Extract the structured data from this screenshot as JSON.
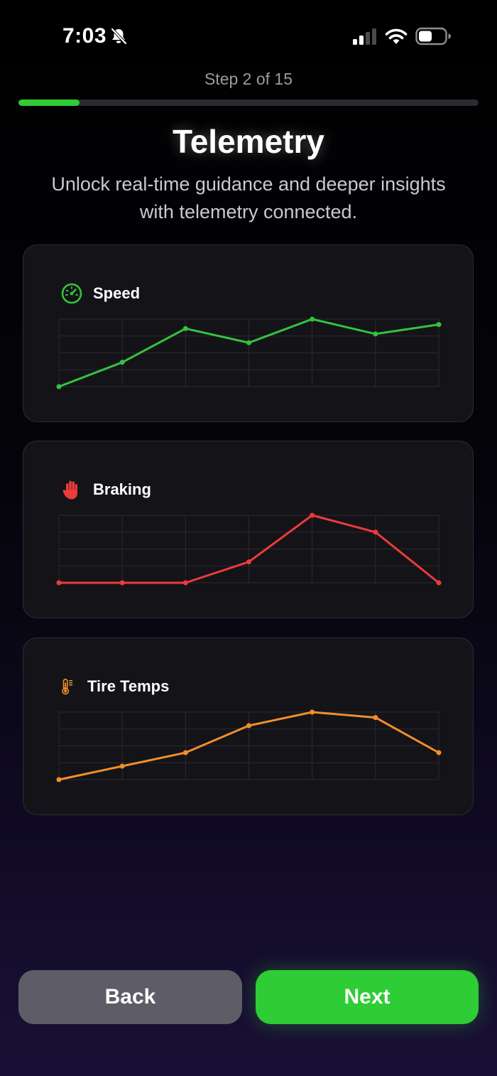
{
  "status_bar": {
    "time": "7:03",
    "silent_icon": "bell-slash-icon",
    "signal_icon": "cellular-signal-icon",
    "wifi_icon": "wifi-icon",
    "battery_icon": "battery-icon"
  },
  "onboarding": {
    "step_label": "Step 2 of 15",
    "progress_fraction": 0.133,
    "title": "Telemetry",
    "subtitle": "Unlock real-time guidance and deeper insights with telemetry connected."
  },
  "cards": [
    {
      "label": "Speed",
      "icon": "speedometer-icon",
      "color": "#33c33d",
      "values": [
        0.0,
        0.36,
        0.86,
        0.65,
        1.0,
        0.78,
        0.92
      ]
    },
    {
      "label": "Braking",
      "icon": "hand-icon",
      "color": "#ec3b3b",
      "values": [
        0.0,
        0.0,
        0.0,
        0.31,
        1.0,
        0.75,
        0.0
      ]
    },
    {
      "label": "Tire Temps",
      "icon": "thermometer-icon",
      "color": "#f08f2a",
      "values": [
        0.0,
        0.2,
        0.4,
        0.8,
        1.0,
        0.92,
        0.4
      ]
    }
  ],
  "buttons": {
    "back": "Back",
    "next": "Next"
  },
  "colors": {
    "accent": "#2ecc35",
    "back_button": "#5e5d67"
  }
}
